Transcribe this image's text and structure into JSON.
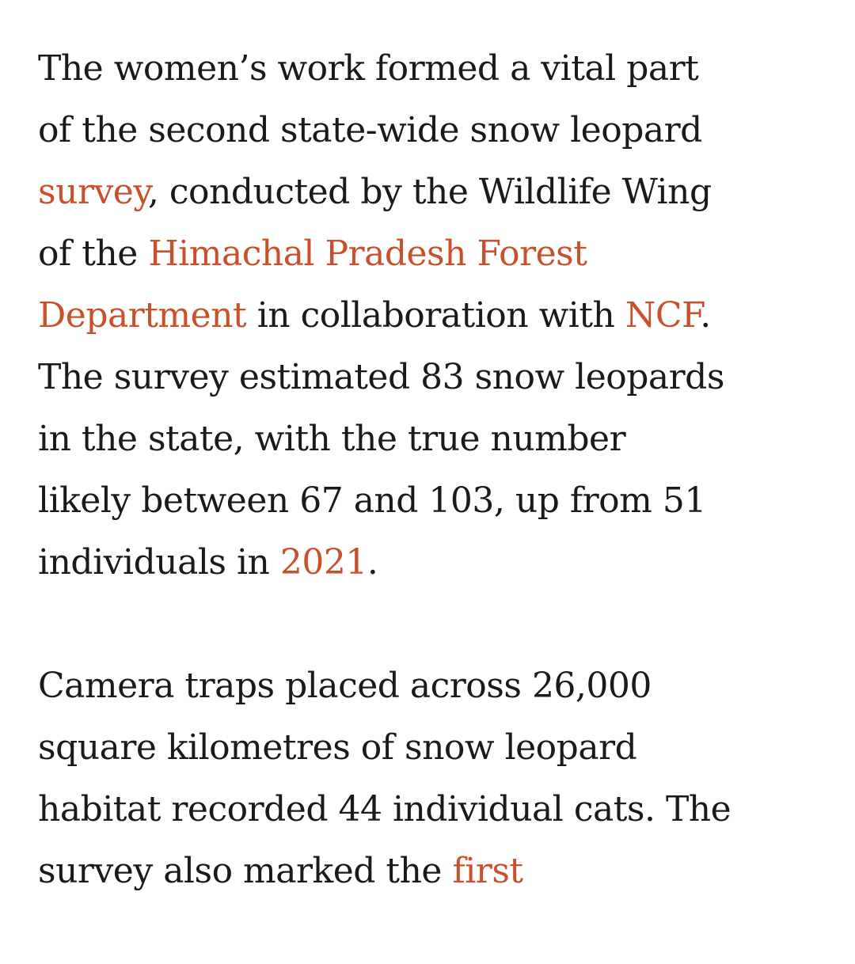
{
  "link_color": "#c9502b",
  "paragraphs": [
    {
      "lines": [
        [
          {
            "t": "The women’s work formed a vital part"
          }
        ],
        [
          {
            "t": "of the second state-wide snow leopard"
          }
        ],
        [
          {
            "t": "survey",
            "link": true
          },
          {
            "t": ", conducted by the Wildlife Wing"
          }
        ],
        [
          {
            "t": "of the "
          },
          {
            "t": "Himachal Pradesh Forest",
            "link": true
          }
        ],
        [
          {
            "t": "Department",
            "link": true
          },
          {
            "t": " in collaboration with "
          },
          {
            "t": "NCF",
            "link": true
          },
          {
            "t": "."
          }
        ],
        [
          {
            "t": "The survey estimated 83 snow leopards"
          }
        ],
        [
          {
            "t": "in the state, with the true number"
          }
        ],
        [
          {
            "t": "likely between 67 and 103, up from 51"
          }
        ],
        [
          {
            "t": "individuals in "
          },
          {
            "t": "2021",
            "link": true
          },
          {
            "t": "."
          }
        ]
      ]
    },
    {
      "lines": [
        [
          {
            "t": "Camera traps placed across 26,000"
          }
        ],
        [
          {
            "t": "square kilometres of snow leopard"
          }
        ],
        [
          {
            "t": "habitat recorded 44 individual cats. The"
          }
        ],
        [
          {
            "t": "survey also marked the "
          },
          {
            "t": "first",
            "link": true
          }
        ]
      ]
    }
  ]
}
